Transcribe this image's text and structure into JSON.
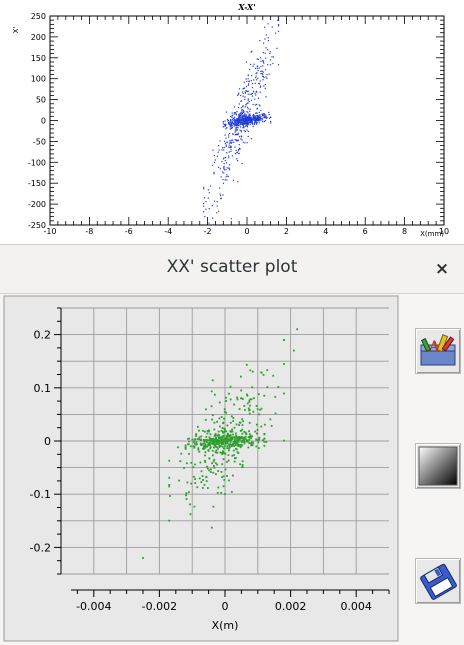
{
  "top_plot": {
    "title": "X-X'",
    "xlabel": "X(mm)",
    "ylabel": "X'",
    "x_ticks": [
      "-10",
      "-8",
      "-6",
      "-4",
      "-2",
      "0",
      "2",
      "4",
      "6",
      "8",
      "10"
    ],
    "y_ticks": [
      "250",
      "200",
      "150",
      "100",
      "50",
      "0",
      "-50",
      "-100",
      "-150",
      "-200",
      "-250"
    ],
    "marker_color": "#1f3bd6"
  },
  "dialog": {
    "title": "XX' scatter plot",
    "close_glyph": "×",
    "xlabel": "X(m)",
    "x_ticks": [
      "-0.004",
      "-0.002",
      "0",
      "0.002",
      "0.004"
    ],
    "y_ticks": [
      "0.2",
      "0.1",
      "0",
      "-0.1",
      "-0.2"
    ],
    "marker_color": "#2e9e2e",
    "buttons": {
      "options_icon": "plot-options-icon",
      "gradient_icon": "gradient-icon",
      "save_icon": "floppy-save-icon"
    }
  },
  "chart_data": [
    {
      "type": "scatter",
      "title": "X-X'",
      "xlabel": "X(mm)",
      "ylabel": "X'",
      "xlim": [
        -10,
        10
      ],
      "ylim": [
        -250,
        250
      ],
      "grid": false,
      "series": [
        {
          "components": [
            {
              "kind": "core-band",
              "x_range": [
                -1.2,
                1.2
              ],
              "slope": 8,
              "spread": 6,
              "count": 420
            },
            {
              "kind": "tilted-halo",
              "x_range": [
                -2.2,
                1.6
              ],
              "slope": 110,
              "spread": 45,
              "count": 420
            }
          ]
        }
      ]
    },
    {
      "type": "scatter",
      "title": "XX' scatter plot",
      "xlabel": "X(m)",
      "ylabel": "",
      "xlim": [
        -0.005,
        0.005
      ],
      "ylim": [
        -0.25,
        0.25
      ],
      "grid": true,
      "series": [
        {
          "components": [
            {
              "kind": "core-band",
              "x_range": [
                -0.0012,
                0.0012
              ],
              "slope": 3,
              "spread": 0.008,
              "count": 320
            },
            {
              "kind": "tilted-halo",
              "x_range": [
                -0.0017,
                0.0018
              ],
              "slope": 55,
              "spread": 0.05,
              "count": 260
            },
            {
              "kind": "outliers",
              "points": [
                [
                  0.0022,
                  0.21
                ],
                [
                  -0.0025,
                  -0.22
                ],
                [
                  0.0018,
                  0.19
                ],
                [
                  0.0021,
                  0.17
                ]
              ]
            }
          ]
        }
      ]
    }
  ]
}
